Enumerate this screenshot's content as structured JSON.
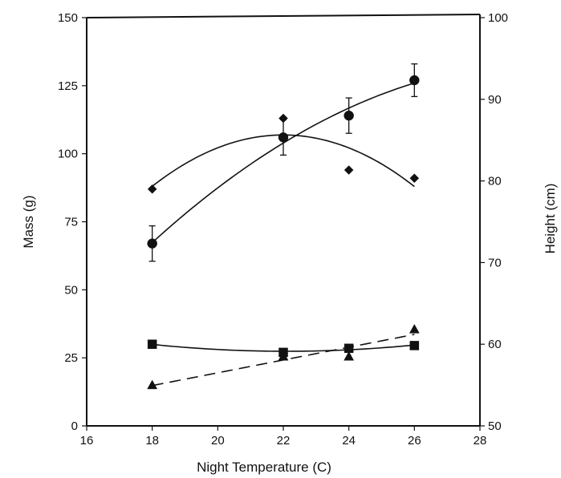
{
  "chart_data": {
    "type": "scatter",
    "title": "",
    "xlabel": "Night Temperature (C)",
    "ylabel": "Mass (g)",
    "y2label": "Height (cm)",
    "xlim": [
      16,
      28
    ],
    "ylim": [
      0,
      150
    ],
    "y2lim": [
      50,
      100
    ],
    "xticks": [
      "16",
      "18",
      "20",
      "22",
      "24",
      "26",
      "28"
    ],
    "yticks": [
      "0",
      "25",
      "50",
      "75",
      "100",
      "125",
      "150"
    ],
    "y2ticks": [
      "50",
      "60",
      "70",
      "80",
      "90",
      "100"
    ],
    "grid": false,
    "legend": "none",
    "series": [
      {
        "marker": "circle",
        "axis": "left",
        "line": "solid",
        "x": [
          18,
          22,
          24,
          26
        ],
        "y": [
          67,
          106,
          114,
          127
        ],
        "err": [
          6.5,
          6.5,
          6.5,
          6
        ]
      },
      {
        "marker": "diamond",
        "axis": "left",
        "line": "solid",
        "x": [
          18,
          22,
          24,
          26
        ],
        "y": [
          87,
          113,
          94,
          91
        ]
      },
      {
        "marker": "square",
        "axis": "left",
        "line": "solid",
        "x": [
          18,
          22,
          24,
          26
        ],
        "y": [
          30,
          27,
          28.5,
          29.5
        ]
      },
      {
        "marker": "triangle",
        "axis": "left",
        "line": "dashed",
        "x": [
          18,
          22,
          24,
          26
        ],
        "y": [
          15,
          25.5,
          25.5,
          35.5
        ]
      }
    ]
  }
}
